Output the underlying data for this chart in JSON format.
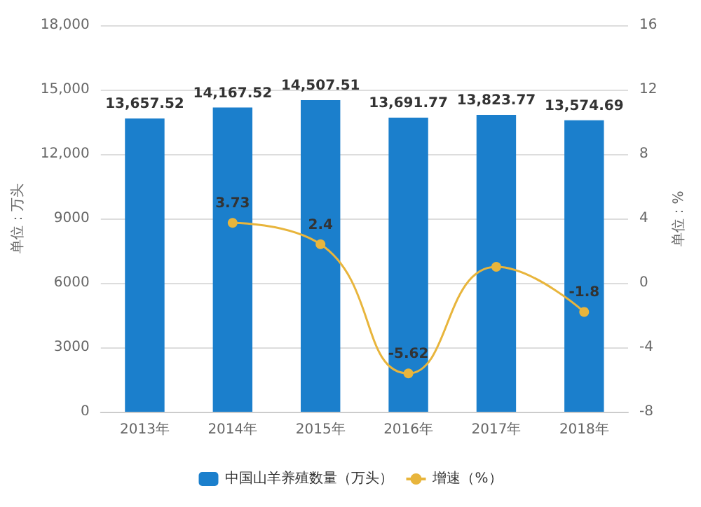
{
  "chart_data": {
    "type": "bar",
    "categories": [
      "2013年",
      "2014年",
      "2015年",
      "2016年",
      "2017年",
      "2018年"
    ],
    "ylabel": "单位：万头",
    "y2label": "单位：%",
    "series": [
      {
        "name": "中国山羊养殖数量（万头）",
        "color": "#1b7fcc",
        "values": [
          13657.52,
          14167.52,
          14507.51,
          13691.77,
          13823.77,
          13574.69
        ],
        "value_labels": [
          "13,657.52",
          "14,167.52",
          "14,507.51",
          "13,691.77",
          "13,823.77",
          "13,574.69"
        ]
      },
      {
        "name": "增速（%）",
        "type": "line",
        "axis": "y2",
        "color": "#e8b53c",
        "values": [
          null,
          3.73,
          2.4,
          -5.62,
          1,
          -1.8
        ],
        "value_labels": [
          null,
          "3.73",
          "2.4",
          "-5.62",
          null,
          "-1.8"
        ]
      }
    ],
    "ylim": [
      0,
      18000
    ],
    "yticks": [
      0,
      3000,
      6000,
      9000,
      {
        "value": 12000,
        "label": "12,000"
      },
      {
        "value": 15000,
        "label": "15,000"
      },
      {
        "value": 18000,
        "label": "18,000"
      }
    ],
    "y2lim": [
      -8,
      16
    ],
    "y2ticks": [
      -8,
      -4,
      0,
      4,
      8,
      12,
      16
    ],
    "grid": "y",
    "legend": "bottom",
    "marker": "circle"
  }
}
